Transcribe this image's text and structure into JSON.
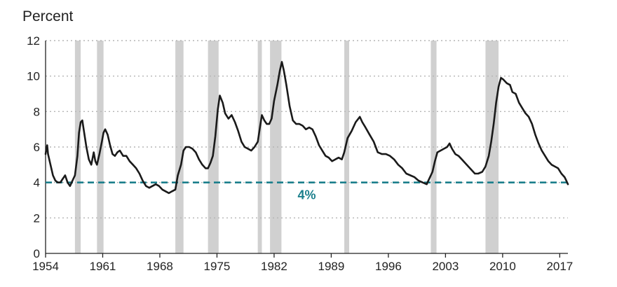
{
  "chart_data": {
    "type": "line",
    "title": "",
    "ylabel": "Percent",
    "xlabel": "",
    "xlim": [
      1954,
      2018
    ],
    "ylim": [
      0,
      12
    ],
    "yticks": [
      0,
      2,
      4,
      6,
      8,
      10,
      12
    ],
    "xticks": [
      1954,
      1961,
      1968,
      1975,
      1982,
      1989,
      1996,
      2003,
      2010,
      2017
    ],
    "grid": "horizontal dotted",
    "colors": {
      "line": "#1a1a1a",
      "reference": "#1b7f8c",
      "recession": "#d0d0d0",
      "grid": "#b5b5b5",
      "axis": "#222222"
    },
    "reference_line": {
      "value": 4,
      "label": "4%",
      "label_x": 1986
    },
    "recessions": [
      [
        1957.6,
        1958.3
      ],
      [
        1960.3,
        1961.1
      ],
      [
        1969.9,
        1970.9
      ],
      [
        1973.9,
        1975.2
      ],
      [
        1980.0,
        1980.5
      ],
      [
        1981.5,
        1982.9
      ],
      [
        1990.6,
        1991.2
      ],
      [
        2001.2,
        2001.9
      ],
      [
        2007.9,
        2009.5
      ]
    ],
    "series": [
      {
        "values": [
          [
            1954.0,
            5.6
          ],
          [
            1954.1,
            5.9
          ],
          [
            1954.2,
            6.1
          ],
          [
            1954.3,
            5.6
          ],
          [
            1954.6,
            5.0
          ],
          [
            1954.9,
            4.4
          ],
          [
            1955.2,
            4.1
          ],
          [
            1955.5,
            4.0
          ],
          [
            1955.8,
            4.0
          ],
          [
            1956.1,
            4.2
          ],
          [
            1956.4,
            4.4
          ],
          [
            1956.7,
            4.0
          ],
          [
            1957.0,
            3.8
          ],
          [
            1957.3,
            4.1
          ],
          [
            1957.6,
            4.4
          ],
          [
            1957.9,
            5.5
          ],
          [
            1958.1,
            6.8
          ],
          [
            1958.3,
            7.4
          ],
          [
            1958.5,
            7.5
          ],
          [
            1958.7,
            6.9
          ],
          [
            1959.0,
            6.0
          ],
          [
            1959.3,
            5.3
          ],
          [
            1959.6,
            5.0
          ],
          [
            1959.9,
            5.7
          ],
          [
            1960.1,
            5.2
          ],
          [
            1960.3,
            5.0
          ],
          [
            1960.6,
            5.6
          ],
          [
            1960.9,
            6.3
          ],
          [
            1961.1,
            6.8
          ],
          [
            1961.3,
            7.0
          ],
          [
            1961.6,
            6.7
          ],
          [
            1961.9,
            6.1
          ],
          [
            1962.2,
            5.6
          ],
          [
            1962.5,
            5.5
          ],
          [
            1962.8,
            5.7
          ],
          [
            1963.1,
            5.8
          ],
          [
            1963.5,
            5.5
          ],
          [
            1963.9,
            5.5
          ],
          [
            1964.3,
            5.2
          ],
          [
            1964.7,
            5.0
          ],
          [
            1965.1,
            4.8
          ],
          [
            1965.5,
            4.5
          ],
          [
            1965.9,
            4.1
          ],
          [
            1966.3,
            3.8
          ],
          [
            1966.7,
            3.7
          ],
          [
            1967.1,
            3.8
          ],
          [
            1967.5,
            3.9
          ],
          [
            1967.9,
            3.8
          ],
          [
            1968.3,
            3.6
          ],
          [
            1968.7,
            3.5
          ],
          [
            1969.1,
            3.4
          ],
          [
            1969.5,
            3.5
          ],
          [
            1969.9,
            3.6
          ],
          [
            1970.2,
            4.4
          ],
          [
            1970.6,
            5.0
          ],
          [
            1970.9,
            5.8
          ],
          [
            1971.2,
            6.0
          ],
          [
            1971.6,
            6.0
          ],
          [
            1972.0,
            5.9
          ],
          [
            1972.4,
            5.7
          ],
          [
            1972.8,
            5.3
          ],
          [
            1973.2,
            5.0
          ],
          [
            1973.6,
            4.8
          ],
          [
            1973.9,
            4.8
          ],
          [
            1974.2,
            5.1
          ],
          [
            1974.5,
            5.5
          ],
          [
            1974.8,
            6.6
          ],
          [
            1975.1,
            8.1
          ],
          [
            1975.35,
            8.9
          ],
          [
            1975.7,
            8.5
          ],
          [
            1976.0,
            7.9
          ],
          [
            1976.4,
            7.6
          ],
          [
            1976.8,
            7.8
          ],
          [
            1977.2,
            7.4
          ],
          [
            1977.6,
            6.9
          ],
          [
            1978.0,
            6.3
          ],
          [
            1978.4,
            6.0
          ],
          [
            1978.8,
            5.9
          ],
          [
            1979.2,
            5.8
          ],
          [
            1979.6,
            6.0
          ],
          [
            1980.0,
            6.3
          ],
          [
            1980.3,
            7.2
          ],
          [
            1980.5,
            7.8
          ],
          [
            1980.8,
            7.5
          ],
          [
            1981.1,
            7.3
          ],
          [
            1981.4,
            7.3
          ],
          [
            1981.7,
            7.6
          ],
          [
            1982.0,
            8.6
          ],
          [
            1982.4,
            9.5
          ],
          [
            1982.7,
            10.3
          ],
          [
            1982.95,
            10.8
          ],
          [
            1983.2,
            10.3
          ],
          [
            1983.5,
            9.5
          ],
          [
            1983.9,
            8.3
          ],
          [
            1984.3,
            7.5
          ],
          [
            1984.7,
            7.3
          ],
          [
            1985.1,
            7.3
          ],
          [
            1985.5,
            7.2
          ],
          [
            1985.9,
            7.0
          ],
          [
            1986.3,
            7.1
          ],
          [
            1986.7,
            7.0
          ],
          [
            1987.1,
            6.6
          ],
          [
            1987.5,
            6.1
          ],
          [
            1987.9,
            5.8
          ],
          [
            1988.3,
            5.5
          ],
          [
            1988.7,
            5.4
          ],
          [
            1989.1,
            5.2
          ],
          [
            1989.5,
            5.3
          ],
          [
            1989.9,
            5.4
          ],
          [
            1990.3,
            5.3
          ],
          [
            1990.6,
            5.7
          ],
          [
            1991.0,
            6.5
          ],
          [
            1991.5,
            6.9
          ],
          [
            1992.0,
            7.4
          ],
          [
            1992.5,
            7.7
          ],
          [
            1992.8,
            7.4
          ],
          [
            1993.2,
            7.1
          ],
          [
            1993.7,
            6.7
          ],
          [
            1994.2,
            6.3
          ],
          [
            1994.7,
            5.7
          ],
          [
            1995.2,
            5.6
          ],
          [
            1995.7,
            5.6
          ],
          [
            1996.2,
            5.5
          ],
          [
            1996.7,
            5.3
          ],
          [
            1997.2,
            5.0
          ],
          [
            1997.7,
            4.8
          ],
          [
            1998.2,
            4.5
          ],
          [
            1998.7,
            4.4
          ],
          [
            1999.2,
            4.3
          ],
          [
            1999.7,
            4.1
          ],
          [
            2000.2,
            4.0
          ],
          [
            2000.7,
            3.9
          ],
          [
            2001.0,
            4.2
          ],
          [
            2001.4,
            4.6
          ],
          [
            2001.7,
            5.2
          ],
          [
            2002.0,
            5.7
          ],
          [
            2002.4,
            5.8
          ],
          [
            2002.8,
            5.9
          ],
          [
            2003.2,
            6.0
          ],
          [
            2003.5,
            6.2
          ],
          [
            2003.8,
            5.9
          ],
          [
            2004.2,
            5.6
          ],
          [
            2004.6,
            5.5
          ],
          [
            2005.0,
            5.3
          ],
          [
            2005.4,
            5.1
          ],
          [
            2005.8,
            4.9
          ],
          [
            2006.2,
            4.7
          ],
          [
            2006.6,
            4.5
          ],
          [
            2007.0,
            4.5
          ],
          [
            2007.5,
            4.6
          ],
          [
            2007.9,
            4.9
          ],
          [
            2008.3,
            5.5
          ],
          [
            2008.6,
            6.3
          ],
          [
            2008.9,
            7.3
          ],
          [
            2009.2,
            8.5
          ],
          [
            2009.5,
            9.4
          ],
          [
            2009.8,
            9.9
          ],
          [
            2010.1,
            9.8
          ],
          [
            2010.5,
            9.6
          ],
          [
            2010.9,
            9.5
          ],
          [
            2011.2,
            9.1
          ],
          [
            2011.6,
            9.0
          ],
          [
            2012.0,
            8.5
          ],
          [
            2012.4,
            8.2
          ],
          [
            2012.8,
            7.9
          ],
          [
            2013.2,
            7.7
          ],
          [
            2013.6,
            7.3
          ],
          [
            2014.0,
            6.7
          ],
          [
            2014.4,
            6.2
          ],
          [
            2014.8,
            5.8
          ],
          [
            2015.2,
            5.5
          ],
          [
            2015.6,
            5.2
          ],
          [
            2016.0,
            5.0
          ],
          [
            2016.4,
            4.9
          ],
          [
            2016.8,
            4.8
          ],
          [
            2017.2,
            4.5
          ],
          [
            2017.6,
            4.3
          ],
          [
            2017.8,
            4.1
          ],
          [
            2018.0,
            3.9
          ]
        ]
      }
    ]
  }
}
